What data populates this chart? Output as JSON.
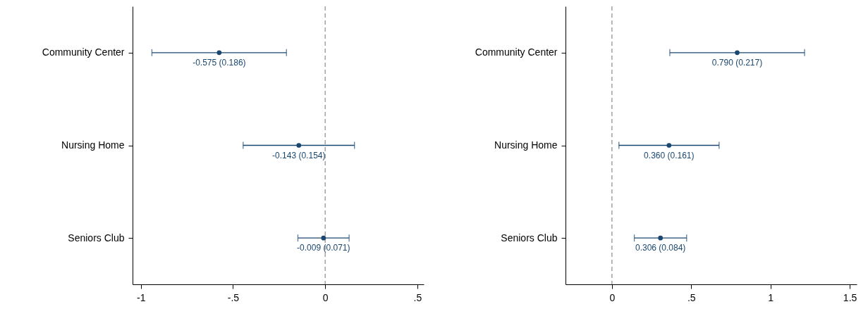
{
  "chart_data": [
    {
      "type": "scatter",
      "orientation": "horizontal",
      "categories": [
        "Community Center",
        "Nursing Home",
        "Seniors Club"
      ],
      "marker": "circle",
      "grid": false,
      "series": [
        {
          "color": "#1a476f",
          "values": [
            -0.575,
            -0.143,
            -0.009
          ],
          "errors": [
            0.365,
            0.302,
            0.139
          ],
          "value_labels": [
            "-0.575 (0.186)",
            "-0.143 (0.154)",
            "-0.009 (0.071)"
          ]
        }
      ],
      "xlim": [
        -1.045,
        0.535
      ],
      "xticks": [
        {
          "value": -1,
          "label": "-1"
        },
        {
          "value": -0.5,
          "label": "-.5"
        },
        {
          "value": 0,
          "label": "0"
        },
        {
          "value": 0.5,
          "label": ".5"
        }
      ],
      "ref_lines": [
        {
          "axis": "x",
          "value": 0,
          "color": "#8c8c8c",
          "line_style": "dashed"
        }
      ]
    },
    {
      "type": "scatter",
      "orientation": "horizontal",
      "categories": [
        "Community Center",
        "Nursing Home",
        "Seniors Club"
      ],
      "marker": "circle",
      "grid": false,
      "series": [
        {
          "color": "#1a476f",
          "values": [
            0.79,
            0.36,
            0.306
          ],
          "errors": [
            0.425,
            0.316,
            0.165
          ],
          "value_labels": [
            "0.790 (0.217)",
            "0.360 (0.161)",
            "0.306 (0.084)"
          ]
        }
      ],
      "xlim": [
        -0.293,
        1.544
      ],
      "xticks": [
        {
          "value": 0,
          "label": "0"
        },
        {
          "value": 0.5,
          "label": ".5"
        },
        1,
        {
          "value": 1.5,
          "label": "1.5"
        }
      ],
      "ref_lines": [
        {
          "axis": "x",
          "value": 0,
          "color": "#8c8c8c",
          "line_style": "dashed"
        }
      ]
    }
  ]
}
